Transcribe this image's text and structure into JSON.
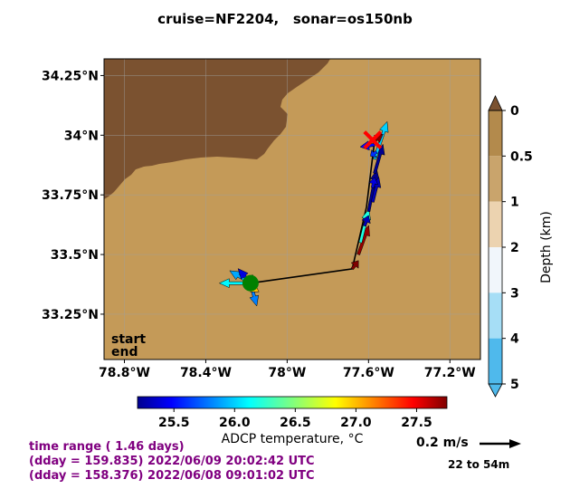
{
  "title": "cruise=NF2204,   sonar=os150nb",
  "map": {
    "lon_range": [
      -78.9,
      -77.05
    ],
    "lat_range": [
      33.06,
      34.32
    ],
    "lon_ticks": [
      {
        "value": -78.8,
        "label": "78.8°W"
      },
      {
        "value": -78.4,
        "label": "78.4°W"
      },
      {
        "value": -78.0,
        "label": "78°W"
      },
      {
        "value": -77.6,
        "label": "77.6°W"
      },
      {
        "value": -77.2,
        "label": "77.2°W"
      }
    ],
    "lat_ticks": [
      {
        "value": 34.25,
        "label": "34.25°N"
      },
      {
        "value": 34.0,
        "label": "34°N"
      },
      {
        "value": 33.75,
        "label": "33.75°N"
      },
      {
        "value": 33.5,
        "label": "33.5°N"
      },
      {
        "value": 33.25,
        "label": "33.25°N"
      }
    ],
    "colors": {
      "land": "#7b5230",
      "shelf": "#c49a58",
      "grid": "#a0a0a0",
      "track": "#000000"
    },
    "legend": {
      "start": "start",
      "end": "end",
      "start_color": "#008000",
      "end_color": "#ff0000"
    },
    "track": [
      [
        -78.18,
        33.38
      ],
      [
        -77.68,
        33.44
      ],
      [
        -77.61,
        33.7
      ],
      [
        -77.57,
        33.98
      ]
    ],
    "start_point": [
      -78.18,
      33.38
    ],
    "end_point": [
      -77.58,
      33.98
    ]
  },
  "vectors": [
    {
      "lon": -78.17,
      "lat": 33.38,
      "u": -0.16,
      "v": 0.0,
      "temp": 26.1
    },
    {
      "lon": -78.18,
      "lat": 33.38,
      "u": -0.1,
      "v": 0.06,
      "temp": 25.9
    },
    {
      "lon": -78.18,
      "lat": 33.38,
      "u": 0.03,
      "v": -0.11,
      "temp": 25.8
    },
    {
      "lon": -78.19,
      "lat": 33.37,
      "u": 0.05,
      "v": -0.03,
      "temp": 27.0
    },
    {
      "lon": -78.19,
      "lat": 33.38,
      "u": 0.02,
      "v": 0.04,
      "temp": 25.6
    },
    {
      "lon": -78.18,
      "lat": 33.38,
      "u": -0.06,
      "v": 0.07,
      "temp": 25.4
    },
    {
      "lon": -77.68,
      "lat": 33.44,
      "u": 0.03,
      "v": 0.04,
      "temp": 27.9
    },
    {
      "lon": -77.65,
      "lat": 33.5,
      "u": 0.05,
      "v": 0.14,
      "temp": 27.7
    },
    {
      "lon": -77.64,
      "lat": 33.55,
      "u": 0.04,
      "v": 0.16,
      "temp": 26.2
    },
    {
      "lon": -77.62,
      "lat": 33.62,
      "u": 0.02,
      "v": 0.05,
      "temp": 25.3
    },
    {
      "lon": -77.6,
      "lat": 33.68,
      "u": 0.04,
      "v": 0.2,
      "temp": 25.2
    },
    {
      "lon": -77.58,
      "lat": 33.72,
      "u": 0.03,
      "v": 0.12,
      "temp": 25.3
    },
    {
      "lon": -77.58,
      "lat": 33.78,
      "u": 0.01,
      "v": 0.05,
      "temp": 25.4
    },
    {
      "lon": -77.57,
      "lat": 33.84,
      "u": 0.04,
      "v": 0.14,
      "temp": 25.2
    },
    {
      "lon": -77.57,
      "lat": 33.9,
      "u": 0.06,
      "v": 0.18,
      "temp": 26.0
    },
    {
      "lon": -77.56,
      "lat": 33.93,
      "u": -0.03,
      "v": -0.02,
      "temp": 25.6
    },
    {
      "lon": -77.57,
      "lat": 33.96,
      "u": -0.07,
      "v": -0.01,
      "temp": 25.5
    },
    {
      "lon": -77.58,
      "lat": 33.97,
      "u": 0.05,
      "v": 0.04,
      "temp": 27.8
    }
  ],
  "temperature_colorbar": {
    "title": "ADCP temperature, °C",
    "min": 25.2,
    "max": 27.75,
    "ticks": [
      {
        "value": 25.5,
        "label": "25.5"
      },
      {
        "value": 26.0,
        "label": "26.0"
      },
      {
        "value": 26.5,
        "label": "26.5"
      },
      {
        "value": 27.0,
        "label": "27.0"
      },
      {
        "value": 27.5,
        "label": "27.5"
      }
    ]
  },
  "depth_colorbar": {
    "title": "Depth (km)",
    "ticks": [
      {
        "value": 0,
        "label": "0"
      },
      {
        "value": 0.5,
        "label": "0.5"
      },
      {
        "value": 1,
        "label": "1"
      },
      {
        "value": 2,
        "label": "2"
      },
      {
        "value": 3,
        "label": "3"
      },
      {
        "value": 4,
        "label": "4"
      },
      {
        "value": 5,
        "label": "5"
      }
    ],
    "bands": [
      {
        "from": 0,
        "to": 0.5,
        "color": "#b38a4c"
      },
      {
        "from": 0.5,
        "to": 1,
        "color": "#c9a46c"
      },
      {
        "from": 1,
        "to": 2,
        "color": "#ecd3b0"
      },
      {
        "from": 2,
        "to": 3,
        "color": "#f1f6fb"
      },
      {
        "from": 3,
        "to": 4,
        "color": "#a6def6"
      },
      {
        "from": 4,
        "to": 5,
        "color": "#4fb9ec"
      }
    ],
    "top_color": "#7b5230",
    "bottom_color": "#4fb9ec"
  },
  "time_info": {
    "line1": "time range ( 1.46 days)",
    "line2": "(dday = 159.835) 2022/06/09 20:02:42 UTC",
    "line3": "(dday = 158.376) 2022/06/08 09:01:02 UTC"
  },
  "scale": {
    "label": "0.2 m/s",
    "value": 0.2,
    "depth_range": "22 to 54m"
  }
}
